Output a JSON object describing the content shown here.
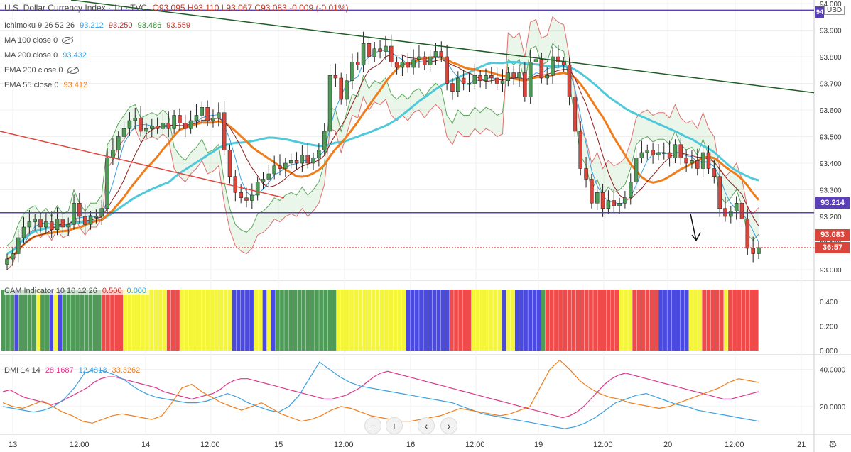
{
  "header": {
    "symbol": "U.S. Dollar Currency Index · 1h · TVC",
    "ohlc": "O93.095 H93.110 L93.067 C93.083 -0.009 (-0.01%)",
    "currency": "USD",
    "price_badge_top": "94"
  },
  "legends": {
    "ichimoku": {
      "label": "Ichimoku 9 26 52 26",
      "v1": "93.212",
      "v2": "93.250",
      "v3": "93.486",
      "v4": "93.559"
    },
    "ma100": {
      "label": "MA 100 close 0"
    },
    "ma200": {
      "label": "MA 200 close 0",
      "value": "93.432"
    },
    "ema200": {
      "label": "EMA 200 close 0"
    },
    "ema55": {
      "label": "EMA 55 close 0",
      "value": "93.412"
    },
    "cam": {
      "label": "CAM Indicator 10 10 12 26",
      "v1": "0.500",
      "v2": "0.000"
    },
    "dmi": {
      "label": "DMI 14 14",
      "v1": "28.1687",
      "v2": "12.4313",
      "v3": "33.3262"
    }
  },
  "badges": {
    "level": "93.214",
    "last": "93.083",
    "timer": "36:57"
  },
  "colors": {
    "up": "#4e9a57",
    "down": "#d9453b",
    "ema55": "#f07d1a",
    "ma200": "#4ec9d9",
    "purple": "#5b3fb8",
    "trend": "#1f5c25",
    "redline": "#e0453b",
    "cam_green": "#4e9a57",
    "cam_blue": "#4a4ae0",
    "cam_red": "#f04a4a",
    "cam_yellow": "#f5f53a",
    "dmi_pink": "#e0358a",
    "dmi_blue": "#3aa0e0",
    "dmi_orange": "#f07d1a"
  },
  "chart_data": [
    {
      "type": "candlestick",
      "title": "U.S. Dollar Currency Index, 1h",
      "y_ticks": [
        "94.000",
        "93.900",
        "93.800",
        "93.700",
        "93.600",
        "93.500",
        "93.400",
        "93.300",
        "93.200",
        "93.100",
        "93.000"
      ],
      "y_range": [
        92.96,
        94.0
      ],
      "x_ticks": [
        "13",
        "12:00",
        "14",
        "12:00",
        "15",
        "12:00",
        "16",
        "12:00",
        "19",
        "12:00",
        "20",
        "12:00",
        "21"
      ],
      "horizontal_levels": [
        93.975,
        93.214
      ],
      "close": [
        93.04,
        93.06,
        93.12,
        93.16,
        93.18,
        93.19,
        93.16,
        93.18,
        93.15,
        93.19,
        93.16,
        93.17,
        93.25,
        93.2,
        93.17,
        93.2,
        93.2,
        93.23,
        93.42,
        93.45,
        93.5,
        93.53,
        93.56,
        93.57,
        93.52,
        93.53,
        93.54,
        93.53,
        93.55,
        93.53,
        93.58,
        93.55,
        93.53,
        93.56,
        93.58,
        93.61,
        93.56,
        93.57,
        93.59,
        93.45,
        93.35,
        93.29,
        93.27,
        93.26,
        93.28,
        93.33,
        93.34,
        93.36,
        93.39,
        93.38,
        93.4,
        93.41,
        93.4,
        93.43,
        93.4,
        93.42,
        93.45,
        93.52,
        93.73,
        93.72,
        93.64,
        93.71,
        93.78,
        93.77,
        93.85,
        93.8,
        93.83,
        93.82,
        93.84,
        93.78,
        93.76,
        93.78,
        93.76,
        93.79,
        93.8,
        93.77,
        93.8,
        93.82,
        93.8,
        93.7,
        93.67,
        93.72,
        93.7,
        93.7,
        93.73,
        93.71,
        93.73,
        93.72,
        93.7,
        93.71,
        93.74,
        93.72,
        93.74,
        93.65,
        93.78,
        93.79,
        93.72,
        93.73,
        93.8,
        93.78,
        93.77,
        93.65,
        93.52,
        93.38,
        93.34,
        93.25,
        93.29,
        93.23,
        93.26,
        93.24,
        93.25,
        93.27,
        93.33,
        93.42,
        93.44,
        93.45,
        93.43,
        93.44,
        93.44,
        93.42,
        93.47,
        93.42,
        93.4,
        93.41,
        93.38,
        93.44,
        93.38,
        93.35,
        93.23,
        93.2,
        93.22,
        93.25,
        93.19,
        93.08,
        93.06,
        93.083
      ]
    },
    {
      "type": "bar",
      "title": "CAM Indicator 10 10 12 26",
      "y_ticks": [
        "0.400",
        "0.200",
        "0.000"
      ],
      "y_range": [
        0,
        0.5
      ],
      "categories": [
        "green",
        "green",
        "green",
        "blue",
        "green",
        "green",
        "green",
        "green",
        "yellow",
        "green",
        "green",
        "blue",
        "yellow",
        "blue",
        "green",
        "green",
        "green",
        "green",
        "green",
        "green",
        "green",
        "green",
        "green",
        "red",
        "red",
        "red",
        "red",
        "red",
        "yellow",
        "yellow",
        "yellow",
        "yellow",
        "yellow",
        "yellow",
        "yellow",
        "yellow",
        "yellow",
        "yellow",
        "red",
        "red",
        "red",
        "yellow",
        "yellow",
        "yellow",
        "yellow",
        "yellow",
        "yellow",
        "yellow",
        "yellow",
        "yellow",
        "yellow",
        "yellow",
        "yellow",
        "blue",
        "blue",
        "blue",
        "blue",
        "blue",
        "yellow",
        "yellow",
        "blue",
        "yellow",
        "blue",
        "green",
        "green",
        "green",
        "green",
        "green",
        "green",
        "green",
        "green",
        "green",
        "green",
        "green",
        "green",
        "green",
        "green",
        "yellow",
        "yellow",
        "yellow",
        "yellow",
        "yellow",
        "yellow",
        "yellow",
        "yellow",
        "yellow",
        "yellow",
        "yellow",
        "yellow",
        "yellow",
        "yellow",
        "yellow",
        "yellow",
        "blue",
        "blue",
        "blue",
        "blue",
        "blue",
        "blue",
        "blue",
        "blue",
        "blue",
        "blue",
        "red",
        "red",
        "red",
        "red",
        "red",
        "yellow",
        "yellow",
        "yellow",
        "yellow",
        "yellow",
        "yellow",
        "yellow",
        "blue",
        "yellow",
        "yellow",
        "blue",
        "blue",
        "blue",
        "blue",
        "blue",
        "blue",
        "green",
        "red",
        "red",
        "red",
        "red",
        "red",
        "red",
        "red",
        "red",
        "red",
        "red",
        "red",
        "red",
        "red",
        "red",
        "red",
        "red",
        "red",
        "yellow",
        "yellow",
        "yellow",
        "red",
        "red",
        "red",
        "red",
        "red",
        "red",
        "blue",
        "blue",
        "blue",
        "blue",
        "blue",
        "blue",
        "blue",
        "yellow",
        "yellow",
        "yellow",
        "red",
        "red",
        "red",
        "red",
        "red",
        "yellow",
        "red",
        "red",
        "red",
        "red",
        "red",
        "red",
        "red"
      ],
      "values_note": "each bar reaches 0.500"
    },
    {
      "type": "line",
      "title": "DMI 14 14",
      "y_ticks": [
        "40.0000",
        "20.0000"
      ],
      "y_range": [
        5,
        46
      ],
      "series": [
        {
          "name": "28.1687",
          "color": "#e0358a",
          "values": [
            28,
            29,
            27,
            25,
            24,
            23,
            22,
            21,
            22,
            24,
            26,
            28,
            30,
            33,
            35,
            36,
            36,
            35,
            34,
            33,
            32,
            31,
            30,
            28,
            27,
            26,
            25,
            24,
            25,
            26,
            27,
            29,
            32,
            34,
            35,
            35,
            34,
            33,
            32,
            31,
            30,
            29,
            28,
            27,
            26,
            25,
            24,
            24,
            25,
            26,
            28,
            30,
            33,
            36,
            38,
            39,
            38,
            37,
            36,
            35,
            34,
            33,
            32,
            31,
            30,
            29,
            28,
            27,
            26,
            25,
            24,
            23,
            22,
            21,
            20,
            19,
            18,
            17,
            16,
            15,
            14,
            15,
            17,
            20,
            24,
            28,
            32,
            35,
            37,
            38,
            37,
            36,
            35,
            34,
            33,
            32,
            31,
            30,
            29,
            28,
            27,
            26,
            25,
            24,
            24,
            25,
            26,
            27,
            28
          ]
        },
        {
          "name": "12.4313",
          "color": "#3aa0e0",
          "values": [
            20,
            19,
            18,
            17,
            18,
            20,
            24,
            30,
            38,
            40,
            39,
            37,
            34,
            30,
            27,
            25,
            24,
            23,
            22,
            22,
            23,
            25,
            27,
            25,
            22,
            20,
            18,
            17,
            20,
            26,
            35,
            44,
            40,
            36,
            33,
            31,
            30,
            29,
            28,
            27,
            26,
            25,
            24,
            23,
            22,
            20,
            18,
            16,
            15,
            14,
            13,
            12,
            11,
            10,
            9,
            8,
            9,
            11,
            14,
            18,
            22,
            24,
            26,
            27,
            25,
            23,
            21,
            20,
            18,
            17,
            16,
            15,
            14,
            13,
            12
          ]
        },
        {
          "name": "33.3262",
          "color": "#f07d1a",
          "values": [
            22,
            20,
            19,
            21,
            23,
            20,
            17,
            15,
            12,
            11,
            13,
            15,
            16,
            15,
            14,
            13,
            15,
            22,
            30,
            32,
            28,
            25,
            22,
            20,
            18,
            20,
            22,
            19,
            16,
            14,
            12,
            13,
            15,
            18,
            20,
            19,
            17,
            15,
            14,
            13,
            12,
            12,
            13,
            14,
            15,
            17,
            19,
            18,
            17,
            16,
            15,
            16,
            18,
            20,
            30,
            40,
            45,
            40,
            34,
            30,
            27,
            25,
            24,
            22,
            21,
            20,
            19,
            20,
            22,
            24,
            26,
            28,
            30,
            33,
            35,
            34,
            33
          ]
        }
      ]
    }
  ]
}
